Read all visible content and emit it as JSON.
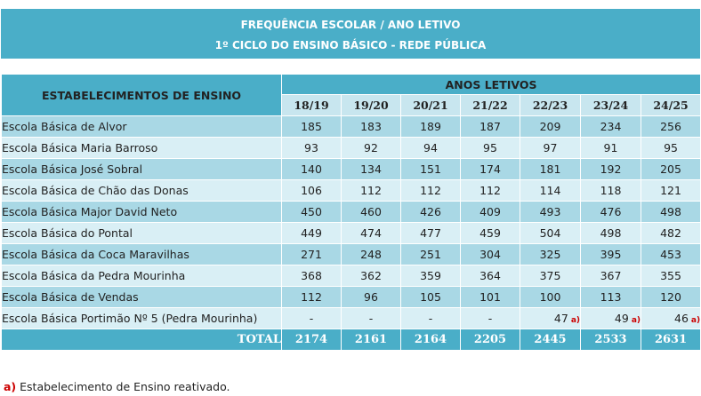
{
  "banner": {
    "line1": "FREQUÊNCIA ESCOLAR / ANO LETIVO",
    "line2": "1º CICLO DO ENSINO BÁSICO - REDE PÚBLICA"
  },
  "table": {
    "col_header_left": "ESTABELECIMENTOS DE ENSINO",
    "col_header_group": "ANOS LETIVOS",
    "years": [
      "18/19",
      "19/20",
      "20/21",
      "21/22",
      "22/23",
      "23/24",
      "24/25"
    ],
    "rows": [
      {
        "name": "Escola Básica de Alvor",
        "values": [
          "185",
          "183",
          "189",
          "187",
          "209",
          "234",
          "256"
        ]
      },
      {
        "name": "Escola Básica Maria Barroso",
        "values": [
          "93",
          "92",
          "94",
          "95",
          "97",
          "91",
          "95"
        ]
      },
      {
        "name": "Escola Básica José Sobral",
        "values": [
          "140",
          "134",
          "151",
          "174",
          "181",
          "192",
          "205"
        ]
      },
      {
        "name": "Escola Básica de Chão das Donas",
        "values": [
          "106",
          "112",
          "112",
          "112",
          "114",
          "118",
          "121"
        ]
      },
      {
        "name": "Escola Básica Major David Neto",
        "values": [
          "450",
          "460",
          "426",
          "409",
          "493",
          "476",
          "498"
        ]
      },
      {
        "name": "Escola Básica do Pontal",
        "values": [
          "449",
          "474",
          "477",
          "459",
          "504",
          "498",
          "482"
        ]
      },
      {
        "name": "Escola Básica da Coca Maravilhas",
        "values": [
          "271",
          "248",
          "251",
          "304",
          "325",
          "395",
          "453"
        ]
      },
      {
        "name": "Escola Básica da Pedra Mourinha",
        "values": [
          "368",
          "362",
          "359",
          "364",
          "375",
          "367",
          "355"
        ]
      },
      {
        "name": "Escola Básica de Vendas",
        "values": [
          "112",
          "96",
          "105",
          "101",
          "100",
          "113",
          "120"
        ]
      },
      {
        "name": "Escola Básica Portimão Nº 5 (Pedra Mourinha)",
        "values": [
          "-",
          "-",
          "-",
          "-",
          "47",
          "49",
          "46"
        ],
        "note_from_index": 4,
        "note_mark": "a)"
      }
    ],
    "total_label": "TOTAL",
    "totals": [
      "2174",
      "2161",
      "2164",
      "2205",
      "2445",
      "2533",
      "2631"
    ]
  },
  "footnote": {
    "mark": "a)",
    "text": " Estabelecimento de Ensino reativado."
  },
  "colors": {
    "header_blue": "#4aaec8",
    "row_dark": "#a9d8e5",
    "row_light": "#d9eff5",
    "note_red": "#cc0000"
  }
}
